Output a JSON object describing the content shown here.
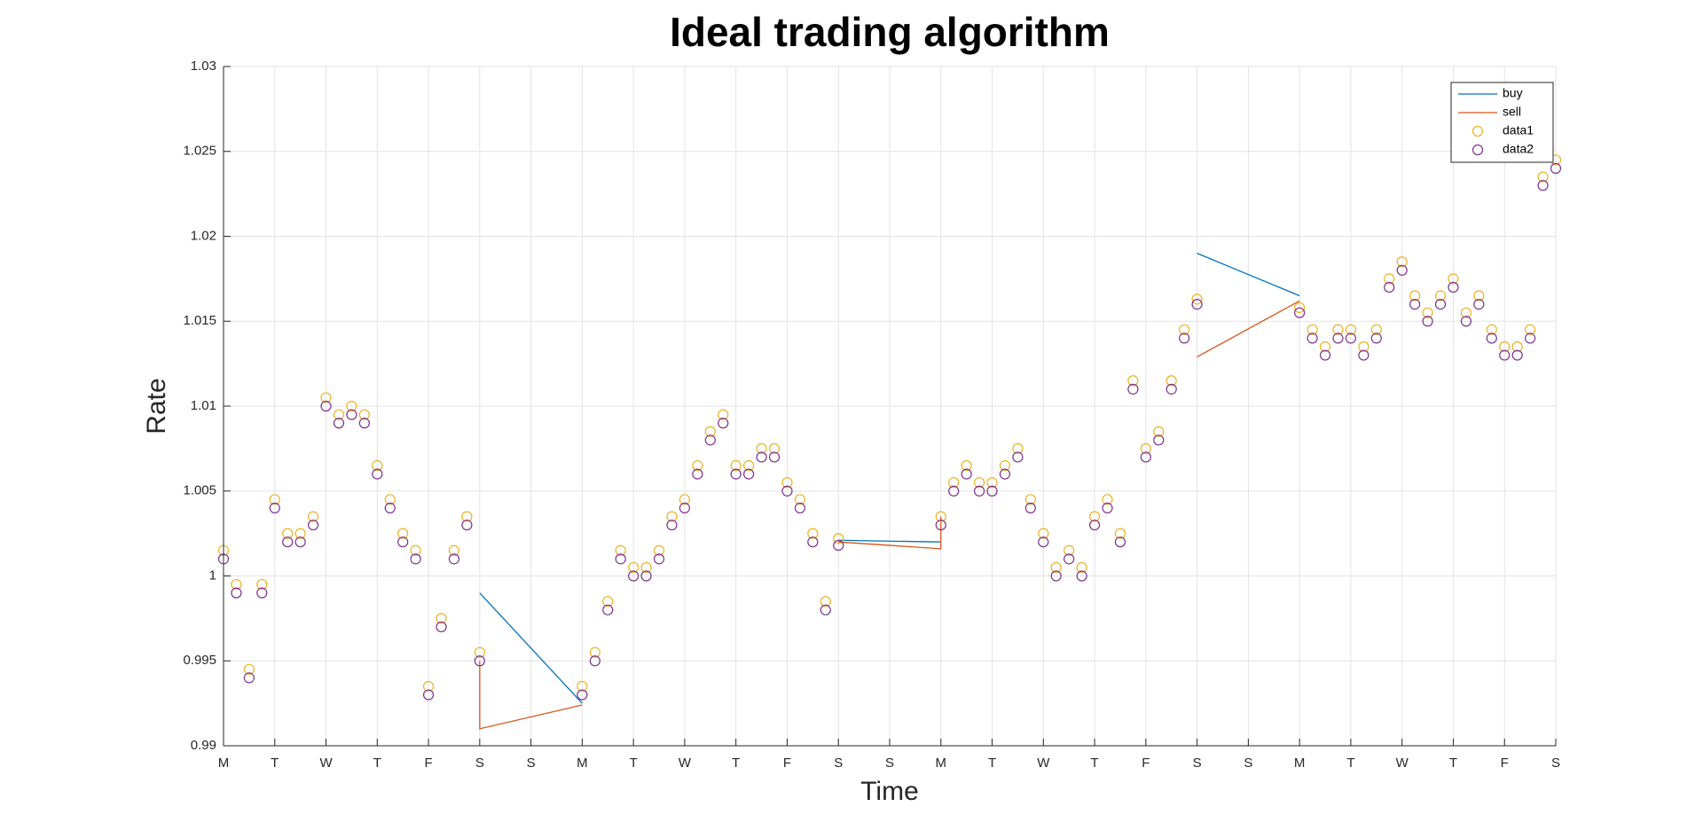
{
  "chart_data": {
    "type": "line_scatter",
    "title": "Ideal trading algorithm",
    "x_label": "Time",
    "y_label": "Rate",
    "xlim": [
      0,
      26
    ],
    "ylim": [
      0.99,
      1.03
    ],
    "grid": true,
    "legend": "northeast",
    "xticks": [
      {
        "value": 0,
        "label": "M"
      },
      {
        "value": 1,
        "label": "T"
      },
      {
        "value": 2,
        "label": "W"
      },
      {
        "value": 3,
        "label": "T"
      },
      {
        "value": 4,
        "label": "F"
      },
      {
        "value": 5,
        "label": "S"
      },
      {
        "value": 6,
        "label": "S"
      },
      {
        "value": 7,
        "label": "M"
      },
      {
        "value": 8,
        "label": "T"
      },
      {
        "value": 9,
        "label": "W"
      },
      {
        "value": 10,
        "label": "T"
      },
      {
        "value": 11,
        "label": "F"
      },
      {
        "value": 12,
        "label": "S"
      },
      {
        "value": 13,
        "label": "S"
      },
      {
        "value": 14,
        "label": "M"
      },
      {
        "value": 15,
        "label": "T"
      },
      {
        "value": 16,
        "label": "W"
      },
      {
        "value": 17,
        "label": "T"
      },
      {
        "value": 18,
        "label": "F"
      },
      {
        "value": 19,
        "label": "S"
      },
      {
        "value": 20,
        "label": "S"
      },
      {
        "value": 21,
        "label": "M"
      },
      {
        "value": 22,
        "label": "T"
      },
      {
        "value": 23,
        "label": "W"
      },
      {
        "value": 24,
        "label": "T"
      },
      {
        "value": 25,
        "label": "F"
      },
      {
        "value": 26,
        "label": "S"
      }
    ],
    "yticks": [
      0.99,
      0.995,
      1,
      1.005,
      1.01,
      1.015,
      1.02,
      1.025,
      1.03
    ],
    "x": [
      0,
      0.25,
      0.5,
      0.75,
      1,
      1.25,
      1.5,
      1.75,
      2,
      2.25,
      2.5,
      2.75,
      3,
      3.25,
      3.5,
      3.75,
      4,
      4.25,
      4.5,
      4.75,
      5,
      7,
      7.25,
      7.5,
      7.75,
      8,
      8.25,
      8.5,
      8.75,
      9,
      9.25,
      9.5,
      9.75,
      10,
      10.25,
      10.5,
      10.75,
      11,
      11.25,
      11.5,
      11.75,
      12,
      14,
      14.25,
      14.5,
      14.75,
      15,
      15.25,
      15.5,
      15.75,
      16,
      16.25,
      16.5,
      16.75,
      17,
      17.25,
      17.5,
      17.75,
      18,
      18.25,
      18.5,
      18.75,
      19,
      21,
      21.25,
      21.5,
      21.75,
      22,
      22.25,
      22.5,
      22.75,
      23,
      23.25,
      23.5,
      23.75,
      24,
      24.25,
      24.5,
      24.75,
      25,
      25.25,
      25.5,
      25.75,
      26
    ],
    "series": [
      {
        "name": "buy",
        "kind": "line",
        "color": "#0072bd",
        "x": [
          5,
          7,
          7,
          12,
          14,
          14,
          19,
          21
        ],
        "values": [
          0.999,
          0.9925,
          null,
          1.0021,
          1.002,
          null,
          1.019,
          1.0165
        ]
      },
      {
        "name": "sell",
        "kind": "line",
        "color": "#d95319",
        "x": [
          5,
          5,
          7,
          7,
          12,
          14,
          14,
          14,
          19,
          21
        ],
        "values": [
          0.995,
          0.991,
          0.9924,
          null,
          1.002,
          1.0016,
          1.0035,
          null,
          1.0129,
          1.0162
        ]
      },
      {
        "name": "data1",
        "kind": "scatter",
        "color": "#edb120",
        "values": [
          1.0015,
          0.9995,
          0.9945,
          0.9995,
          1.0045,
          1.0025,
          1.0025,
          1.0035,
          1.0105,
          1.0095,
          1.01,
          1.0095,
          1.0065,
          1.0045,
          1.0025,
          1.0015,
          0.9935,
          0.9975,
          1.0015,
          1.0035,
          0.9955,
          0.9935,
          0.9955,
          0.9985,
          1.0015,
          1.0005,
          1.0005,
          1.0015,
          1.0035,
          1.0045,
          1.0065,
          1.0085,
          1.0095,
          1.0065,
          1.0065,
          1.0075,
          1.0075,
          1.0055,
          1.0045,
          1.0025,
          0.9985,
          1.0022,
          1.0035,
          1.0055,
          1.0065,
          1.0055,
          1.0055,
          1.0065,
          1.0075,
          1.0045,
          1.0025,
          1.0005,
          1.0015,
          1.0005,
          1.0035,
          1.0045,
          1.0025,
          1.0115,
          1.0075,
          1.0085,
          1.0115,
          1.0145,
          1.0163,
          1.0158,
          1.0145,
          1.0135,
          1.0145,
          1.0145,
          1.0135,
          1.0145,
          1.0175,
          1.0185,
          1.0165,
          1.0155,
          1.0165,
          1.0175,
          1.0155,
          1.0165,
          1.0145,
          1.0135,
          1.0135,
          1.0145,
          1.0235,
          1.0245
        ]
      },
      {
        "name": "data2",
        "kind": "scatter",
        "color": "#7e2f8e",
        "values": [
          1.001,
          0.999,
          0.994,
          0.999,
          1.004,
          1.002,
          1.002,
          1.003,
          1.01,
          1.009,
          1.0095,
          1.009,
          1.006,
          1.004,
          1.002,
          1.001,
          0.993,
          0.997,
          1.001,
          1.003,
          0.995,
          0.993,
          0.995,
          0.998,
          1.001,
          1,
          1,
          1.001,
          1.003,
          1.004,
          1.006,
          1.008,
          1.009,
          1.006,
          1.006,
          1.007,
          1.007,
          1.005,
          1.004,
          1.002,
          0.998,
          1.0018,
          1.003,
          1.005,
          1.006,
          1.005,
          1.005,
          1.006,
          1.007,
          1.004,
          1.002,
          1,
          1.001,
          1,
          1.003,
          1.004,
          1.002,
          1.011,
          1.007,
          1.008,
          1.011,
          1.014,
          1.016,
          1.0155,
          1.014,
          1.013,
          1.014,
          1.014,
          1.013,
          1.014,
          1.017,
          1.018,
          1.016,
          1.015,
          1.016,
          1.017,
          1.015,
          1.016,
          1.014,
          1.013,
          1.013,
          1.014,
          1.023,
          1.024
        ]
      }
    ]
  }
}
